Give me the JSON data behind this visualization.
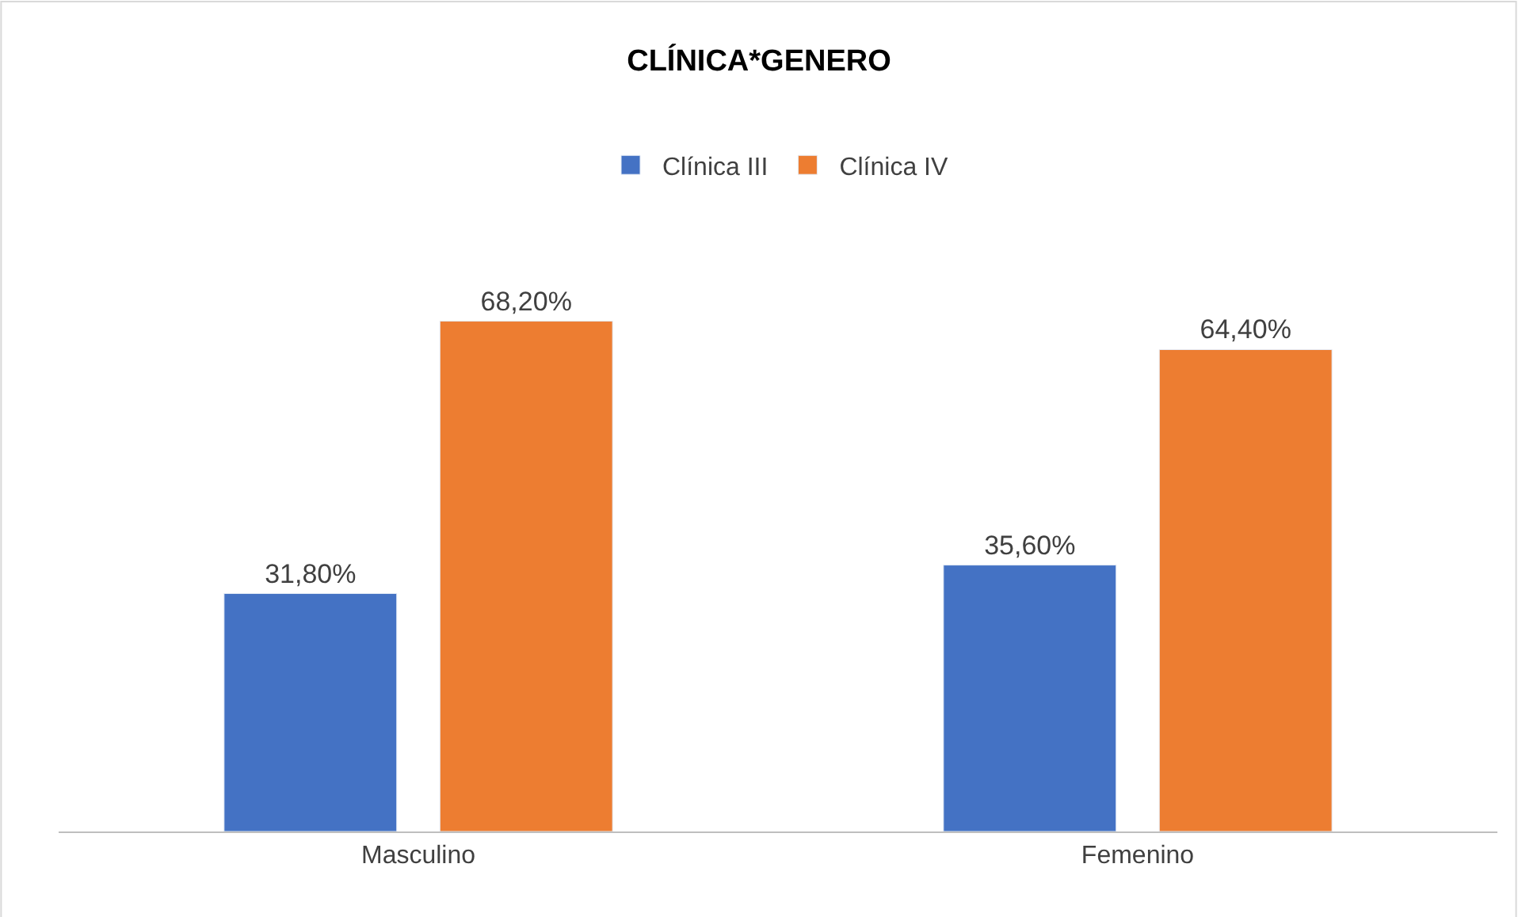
{
  "chart_data": {
    "type": "bar",
    "title": "CLÍNICA*GENERO",
    "categories": [
      "Masculino",
      "Femenino"
    ],
    "series": [
      {
        "name": "Clínica III",
        "color": "#4472c4",
        "values": [
          31.8,
          35.6
        ],
        "value_labels": [
          "31,80%",
          "35,60%"
        ]
      },
      {
        "name": "Clínica IV",
        "color": "#ed7d31",
        "values": [
          68.2,
          64.4
        ],
        "value_labels": [
          "68,20%",
          "64,40%"
        ]
      }
    ],
    "legend": "top"
  }
}
